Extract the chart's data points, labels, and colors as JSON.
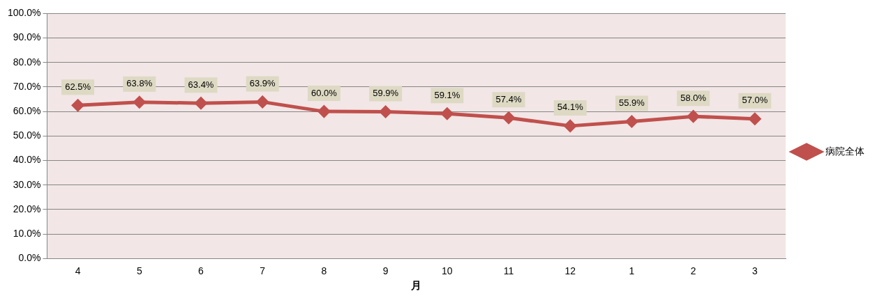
{
  "chart_data": {
    "type": "line",
    "xlabel": "月",
    "categories": [
      "4",
      "5",
      "6",
      "7",
      "8",
      "9",
      "10",
      "11",
      "12",
      "1",
      "2",
      "3"
    ],
    "series": [
      {
        "name": "病院全体",
        "color": "#c0504d",
        "values": [
          62.5,
          63.8,
          63.4,
          63.9,
          60.0,
          59.9,
          59.1,
          57.4,
          54.1,
          55.9,
          58.0,
          57.0
        ],
        "value_labels": [
          "62.5%",
          "63.8%",
          "63.4%",
          "63.9%",
          "60.0%",
          "59.9%",
          "59.1%",
          "57.4%",
          "54.1%",
          "55.9%",
          "58.0%",
          "57.0%"
        ]
      }
    ],
    "ylim": [
      0,
      100
    ],
    "yticks": [
      {
        "value": 0,
        "label": "0.0%"
      },
      {
        "value": 10,
        "label": "10.0%"
      },
      {
        "value": 20,
        "label": "20.0%"
      },
      {
        "value": 30,
        "label": "30.0%"
      },
      {
        "value": 40,
        "label": "40.0%"
      },
      {
        "value": 50,
        "label": "50.0%"
      },
      {
        "value": 60,
        "label": "60.0%"
      },
      {
        "value": 70,
        "label": "70.0%"
      },
      {
        "value": 80,
        "label": "80.0%"
      },
      {
        "value": 90,
        "label": "90.0%"
      },
      {
        "value": 100,
        "label": "100.0%"
      }
    ],
    "grid": "y",
    "legend": "right",
    "marker": "diamond",
    "line_style": "solid"
  }
}
